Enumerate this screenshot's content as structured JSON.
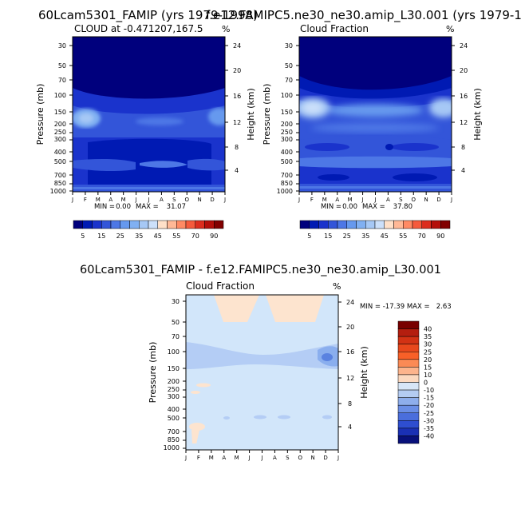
{
  "page": {
    "title_left": "60Lcam5301_FAMIP (yrs 1979-1998)",
    "title_right": "f.e12.FAMIPC5.ne30_ne30.amip_L30.001 (yrs 1979-1",
    "title_diff": "60Lcam5301_FAMIP - f.e12.FAMIPC5.ne30_ne30.amip_L30.001"
  },
  "colors": {
    "abs_levels_colors": [
      "#00007d",
      "#001ab3",
      "#1a33cc",
      "#3355d9",
      "#4d77e6",
      "#6699ee",
      "#80b0f2",
      "#a6c8f5",
      "#cce0fa",
      "#ffe0c8",
      "#ffb896",
      "#ff8a64",
      "#f55a3c",
      "#dc2d1e",
      "#b40f0a",
      "#820000"
    ],
    "diff_bg": "#d2e6fa",
    "diff_band": "#b4cdf5",
    "diff_deep": "#8aaeee",
    "diff_core": "#5a82e0",
    "diff_warm": "#fde4cf"
  },
  "chart_data": [
    {
      "type": "heatmap",
      "panel": "left",
      "title": "CLOUD at -0.471207,167.5",
      "units": "%",
      "ylabel": "Pressure (mb)",
      "y2label": "Height (km)",
      "months": [
        "J",
        "F",
        "M",
        "A",
        "M",
        "J",
        "J",
        "A",
        "S",
        "O",
        "N",
        "D",
        "J"
      ],
      "pressure_ticks": [
        "30",
        "50",
        "70",
        "100",
        "150",
        "200",
        "250",
        "300",
        "400",
        "500",
        "700",
        "850",
        "1000"
      ],
      "height_ticks": [
        "24",
        "20",
        "16",
        "12",
        "8",
        "4"
      ],
      "min_label": "MIN =",
      "min_value": "0.00",
      "max_label": "MAX =",
      "max_value": "31.07",
      "colorbar_labels": [
        "5",
        "15",
        "25",
        "35",
        "45",
        "55",
        "70",
        "90"
      ]
    },
    {
      "type": "heatmap",
      "panel": "right",
      "title": "Cloud Fraction",
      "units": "%",
      "ylabel": "Pressure (mb)",
      "y2label": "Height (km)",
      "months": [
        "J",
        "F",
        "M",
        "A",
        "M",
        "J",
        "J",
        "A",
        "S",
        "O",
        "N",
        "D",
        "J"
      ],
      "pressure_ticks": [
        "30",
        "50",
        "70",
        "100",
        "150",
        "200",
        "250",
        "300",
        "400",
        "500",
        "700",
        "850",
        "1000"
      ],
      "height_ticks": [
        "24",
        "20",
        "16",
        "12",
        "8",
        "4"
      ],
      "min_label": "MIN =",
      "min_value": "0.00",
      "max_label": "MAX =",
      "max_value": "37.80",
      "colorbar_labels": [
        "5",
        "15",
        "25",
        "35",
        "45",
        "55",
        "70",
        "90"
      ]
    },
    {
      "type": "heatmap",
      "panel": "difference",
      "title": "Cloud Fraction",
      "units": "%",
      "ylabel": "Pressure (mb)",
      "y2label": "Height (km)",
      "months": [
        "J",
        "F",
        "M",
        "A",
        "M",
        "J",
        "J",
        "A",
        "S",
        "O",
        "N",
        "D",
        "J"
      ],
      "pressure_ticks": [
        "30",
        "50",
        "70",
        "100",
        "150",
        "200",
        "250",
        "300",
        "400",
        "500",
        "700",
        "850",
        "1000"
      ],
      "height_ticks": [
        "24",
        "20",
        "16",
        "12",
        "8",
        "4"
      ],
      "minmax_text": "MIN = -17.39 MAX =   2.63",
      "colorbar_labels": [
        "40",
        "35",
        "30",
        "25",
        "20",
        "15",
        "10",
        "0",
        "-10",
        "-15",
        "-20",
        "-25",
        "-30",
        "-35",
        "-40"
      ],
      "colorbar_colors": [
        "#780000",
        "#b41e0f",
        "#d23214",
        "#e8481c",
        "#f86028",
        "#fb8a55",
        "#fdb48c",
        "#fcd9bf",
        "#d7e6f7",
        "#b4ccf2",
        "#8eaeec",
        "#6a8ee6",
        "#4a6edc",
        "#2e4ed0",
        "#1a30b4",
        "#08107a"
      ]
    }
  ]
}
